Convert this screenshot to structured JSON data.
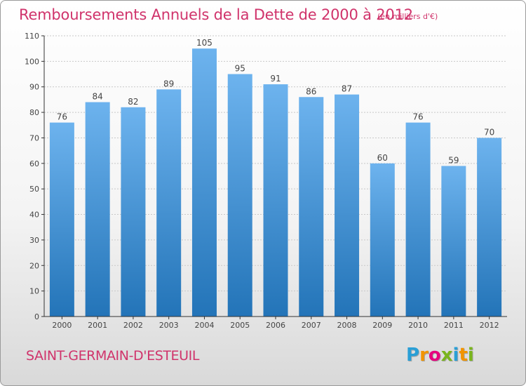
{
  "header": {
    "title": "Remboursements Annuels de la Dette de 2000 à 2012",
    "unit_note": "(en milliers d'€)"
  },
  "footer": {
    "commune": "SAINT-GERMAIN-D'ESTEUIL",
    "logo_letters": [
      "P",
      "r",
      "o",
      "x",
      "i",
      "t",
      "i"
    ],
    "logo_colors": [
      "#2a9fd6",
      "#f29400",
      "#e6007e",
      "#7ab51d",
      "#2a9fd6",
      "#f29400",
      "#7ab51d"
    ]
  },
  "colors": {
    "bar_top": "#6db3ee",
    "bar_bottom": "#2374b8",
    "axis": "#333333",
    "grid": "#c8c8c8",
    "text": "#444444",
    "accent": "#d0336b"
  },
  "chart_data": {
    "type": "bar",
    "title": "Remboursements Annuels de la Dette de 2000 à 2012",
    "subtitle": "(en milliers d'€)",
    "categories": [
      "2000",
      "2001",
      "2002",
      "2003",
      "2004",
      "2005",
      "2006",
      "2007",
      "2008",
      "2009",
      "2010",
      "2011",
      "2012"
    ],
    "values": [
      76,
      84,
      82,
      89,
      105,
      95,
      91,
      86,
      87,
      60,
      76,
      59,
      70
    ],
    "data_labels": [
      "76",
      "84",
      "82",
      "89",
      "105",
      "95",
      "91",
      "86",
      "87",
      "60",
      "76",
      "59",
      "70"
    ],
    "xlabel": "",
    "ylabel": "",
    "ylim": [
      0,
      110
    ],
    "yticks": [
      0,
      10,
      20,
      30,
      40,
      50,
      60,
      70,
      80,
      90,
      100,
      110
    ],
    "grid": true
  }
}
